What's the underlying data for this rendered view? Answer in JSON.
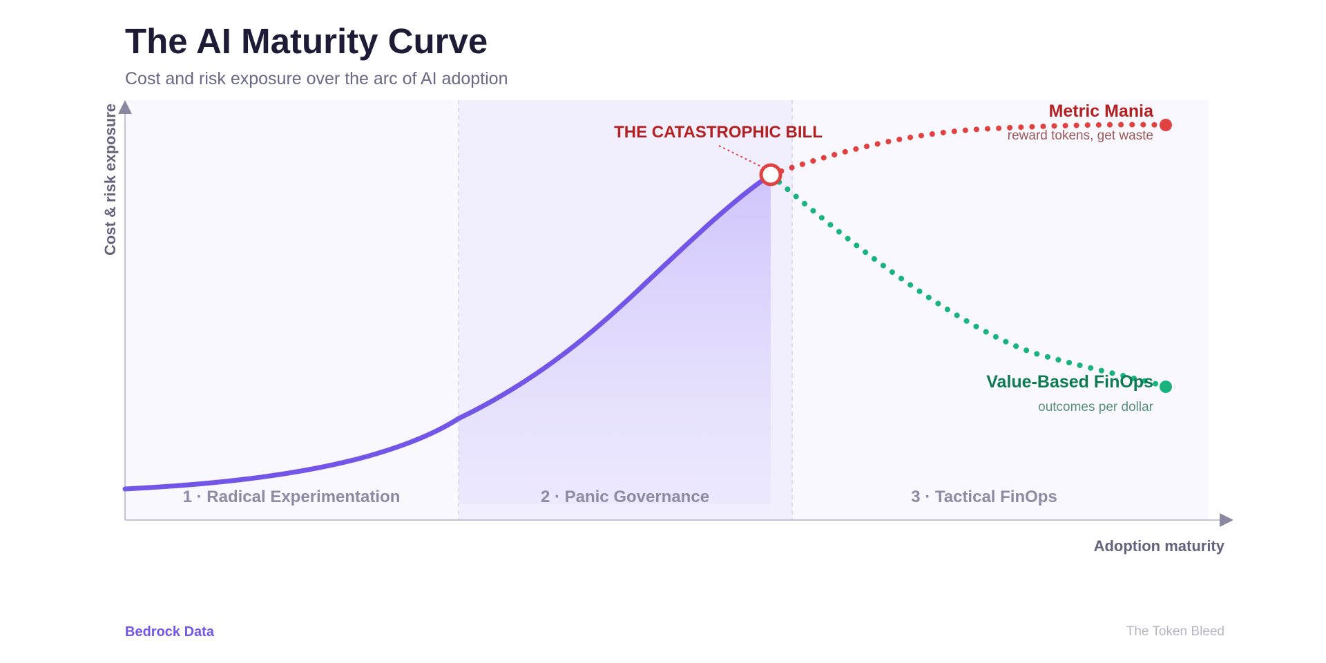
{
  "header": {
    "title": "The AI Maturity Curve",
    "subtitle": "Cost and risk exposure over the arc of AI adoption"
  },
  "axes": {
    "y_label": "Cost & risk exposure",
    "x_label": "Adoption maturity"
  },
  "phases": [
    {
      "label": "1 · Radical Experimentation"
    },
    {
      "label": "2 · Panic Governance"
    },
    {
      "label": "3 · Tactical FinOps"
    }
  ],
  "peak": {
    "label": "THE CATASTROPHIC BILL"
  },
  "outcomes": {
    "bad": {
      "title": "Metric Mania",
      "subtitle": "reward tokens, get waste"
    },
    "good": {
      "title": "Value-Based FinOps",
      "subtitle": "outcomes per dollar"
    }
  },
  "footer": {
    "brand": "Bedrock Data",
    "series": "The Token Bleed"
  },
  "colors": {
    "main_curve": "#7355e8",
    "bad_path": "#e04242",
    "good_path": "#18b37e",
    "phase_band": "#f1eefe",
    "plot_bg": "#f9f8fe"
  }
}
